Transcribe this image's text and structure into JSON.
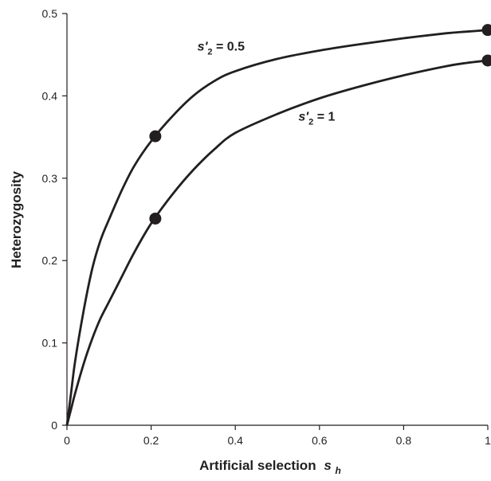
{
  "chart_data": {
    "type": "line",
    "xlabel": "Artificial selection",
    "xlabel_sym": "s",
    "xlabel_sub": "h",
    "ylabel": "Heterozygosity",
    "xlim": [
      0,
      1
    ],
    "ylim": [
      0,
      0.5
    ],
    "x_ticks": [
      {
        "value": 0,
        "label": "0"
      },
      {
        "value": 0.2,
        "label": "0.2"
      },
      {
        "value": 0.4,
        "label": "0.4"
      },
      {
        "value": 0.6,
        "label": "0.6"
      },
      {
        "value": 0.8,
        "label": "0.8"
      },
      {
        "value": 1,
        "label": "1"
      }
    ],
    "y_ticks": [
      {
        "value": 0,
        "label": "0"
      },
      {
        "value": 0.1,
        "label": "0.1"
      },
      {
        "value": 0.2,
        "label": "0.2"
      },
      {
        "value": 0.3,
        "label": "0.3"
      },
      {
        "value": 0.4,
        "label": "0.4"
      },
      {
        "value": 0.5,
        "label": "0.5"
      }
    ],
    "grid": false,
    "series": [
      {
        "name": "s'2 = 0.5",
        "label_sym": "s′",
        "label_sub": "2",
        "label_rest": " = 0.5",
        "label_at": [
          0.31,
          0.455
        ],
        "x": [
          0,
          0.01,
          0.02,
          0.04,
          0.06,
          0.08,
          0.1,
          0.13,
          0.16,
          0.2,
          0.25,
          0.3,
          0.35,
          0.4,
          0.5,
          0.6,
          0.7,
          0.8,
          0.9,
          0.95,
          1.0
        ],
        "y": [
          0,
          0.04,
          0.08,
          0.14,
          0.19,
          0.225,
          0.25,
          0.285,
          0.315,
          0.345,
          0.375,
          0.4,
          0.418,
          0.43,
          0.445,
          0.455,
          0.463,
          0.47,
          0.476,
          0.478,
          0.48
        ],
        "points": [
          {
            "x": 0.21,
            "y": 0.351
          },
          {
            "x": 1.0,
            "y": 0.48
          }
        ]
      },
      {
        "name": "s'2 = 1",
        "label_sym": "s′",
        "label_sub": "2",
        "label_rest": " = 1",
        "label_at": [
          0.55,
          0.37
        ],
        "x": [
          0,
          0.01,
          0.02,
          0.04,
          0.06,
          0.08,
          0.1,
          0.13,
          0.16,
          0.2,
          0.25,
          0.3,
          0.35,
          0.4,
          0.5,
          0.6,
          0.7,
          0.8,
          0.9,
          0.95,
          1.0
        ],
        "y": [
          0,
          0.02,
          0.04,
          0.075,
          0.105,
          0.13,
          0.15,
          0.18,
          0.21,
          0.245,
          0.28,
          0.31,
          0.335,
          0.355,
          0.378,
          0.397,
          0.412,
          0.425,
          0.436,
          0.44,
          0.443
        ],
        "points": [
          {
            "x": 0.21,
            "y": 0.251
          },
          {
            "x": 1.0,
            "y": 0.443
          }
        ]
      }
    ]
  }
}
